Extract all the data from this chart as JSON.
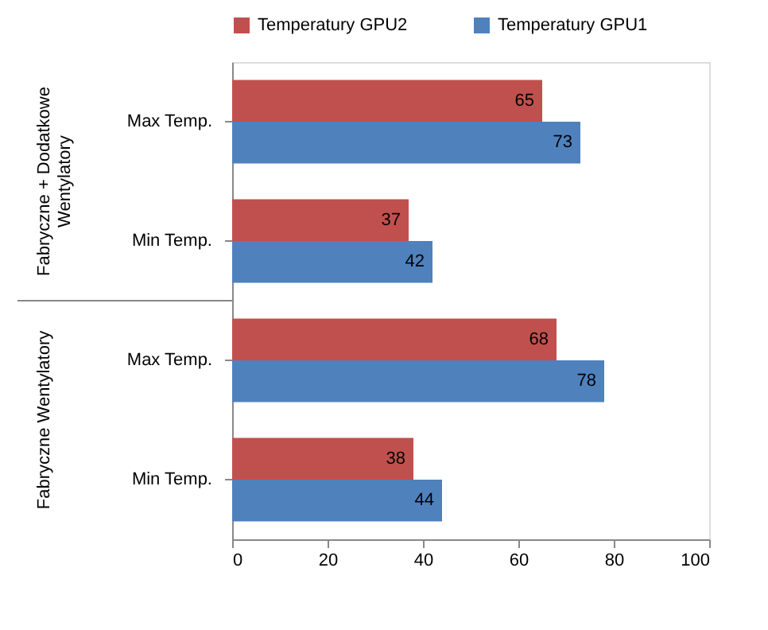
{
  "chart_data": {
    "type": "bar",
    "orientation": "horizontal",
    "categories": [
      "Max Temp.",
      "Min Temp.",
      "Max Temp.",
      "Min Temp."
    ],
    "series": [
      {
        "name": "Temperatury GPU2",
        "color": "#c0504d",
        "values": [
          65,
          37,
          68,
          38
        ]
      },
      {
        "name": "Temperatury GPU1",
        "color": "#4f81bd",
        "values": [
          73,
          42,
          78,
          44
        ]
      }
    ],
    "xlim": [
      0,
      100
    ],
    "xticks": [
      0,
      20,
      40,
      60,
      80,
      100
    ],
    "annotations": [
      "Fabryczne + Dodatkowe Wentylatory",
      "Fabryczne Wentylatory"
    ],
    "data_labels": true,
    "legend": "top",
    "grid": false
  }
}
